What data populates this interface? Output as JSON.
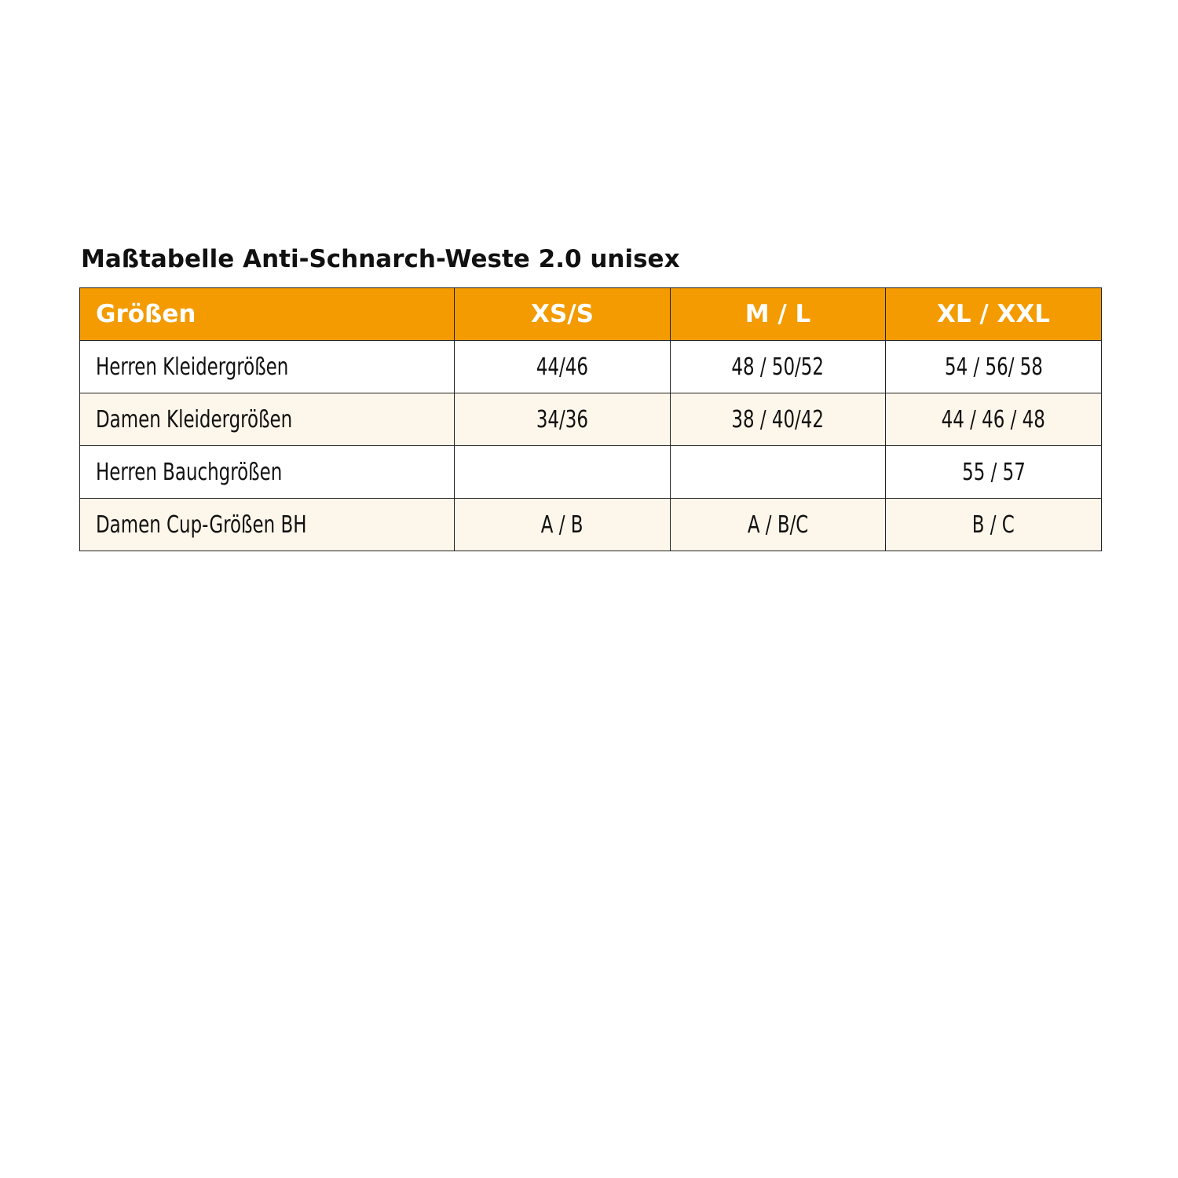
{
  "title": "Maßtabelle Anti-Schnarch-Weste 2.0 unisex",
  "colors": {
    "header_bg": "#F39B00",
    "alt_row_bg": "#FDF6EA",
    "border": "#222222"
  },
  "table": {
    "headers": [
      "Größen",
      "XS/S",
      "M / L",
      "XL / XXL"
    ],
    "rows": [
      [
        "Herren Kleidergrößen",
        "44/46",
        "48 / 50/52",
        "54 / 56/ 58"
      ],
      [
        "Damen Kleidergrößen",
        "34/36",
        "38 / 40/42",
        "44 / 46 / 48"
      ],
      [
        "Herren Bauchgrößen",
        "",
        "",
        "55 / 57"
      ],
      [
        "Damen Cup-Größen BH",
        "A / B",
        "A / B/C",
        "B / C"
      ]
    ]
  }
}
